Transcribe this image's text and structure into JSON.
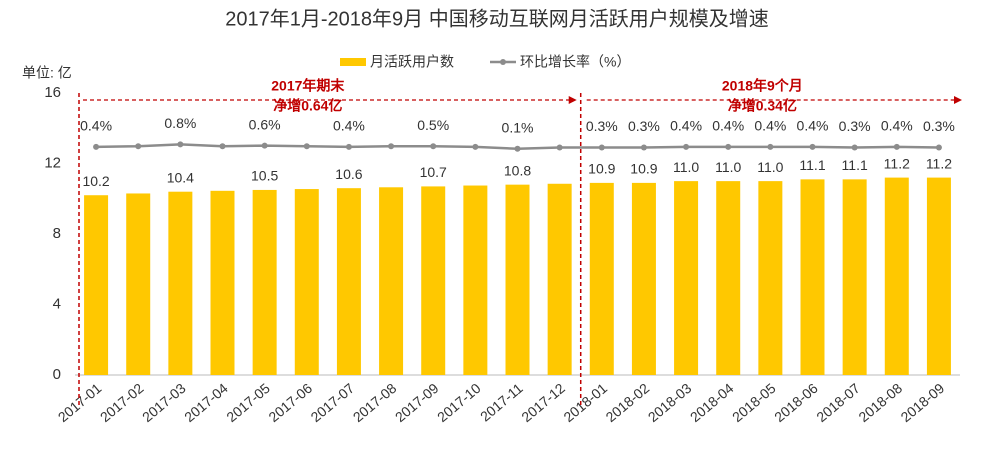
{
  "chart_data": {
    "type": "bar_line",
    "title": "2017年1月-2018年9月 中国移动互联网月活跃用户规模及增速",
    "unit_label": "单位: 亿",
    "categories": [
      "2017-01",
      "2017-02",
      "2017-03",
      "2017-04",
      "2017-05",
      "2017-06",
      "2017-07",
      "2017-08",
      "2017-09",
      "2017-10",
      "2017-11",
      "2017-12",
      "2018-01",
      "2018-02",
      "2018-03",
      "2018-04",
      "2018-05",
      "2018-06",
      "2018-07",
      "2018-08",
      "2018-09"
    ],
    "series": [
      {
        "name": "月活跃用户数",
        "color": "#ffc800",
        "type": "bar",
        "values": [
          10.2,
          10.3,
          10.4,
          10.45,
          10.5,
          10.55,
          10.6,
          10.65,
          10.7,
          10.75,
          10.8,
          10.85,
          10.9,
          10.9,
          11.0,
          11.0,
          11.0,
          11.1,
          11.1,
          11.2,
          11.2
        ],
        "value_labels": [
          "10.2",
          null,
          "10.4",
          null,
          "10.5",
          null,
          "10.6",
          null,
          "10.7",
          null,
          "10.8",
          null,
          "10.9",
          "10.9",
          "11.0",
          "11.0",
          "11.0",
          "11.1",
          "11.1",
          "11.2",
          "11.2"
        ]
      },
      {
        "name": "环比增长率（%）",
        "color": "#8c8c8c",
        "type": "line",
        "axis": "y2",
        "values": [
          0.4,
          0.5,
          0.8,
          0.5,
          0.6,
          0.5,
          0.4,
          0.5,
          0.5,
          0.4,
          0.1,
          0.3,
          0.3,
          0.3,
          0.4,
          0.4,
          0.4,
          0.4,
          0.3,
          0.4,
          0.3
        ],
        "value_labels": [
          "0.4%",
          null,
          "0.8%",
          null,
          "0.6%",
          null,
          "0.4%",
          null,
          "0.5%",
          null,
          "0.1%",
          null,
          "0.3%",
          "0.3%",
          "0.4%",
          "0.4%",
          "0.4%",
          "0.4%",
          "0.3%",
          "0.4%",
          "0.3%"
        ]
      }
    ],
    "ylim": [
      0,
      16
    ],
    "yticks": [
      0,
      4,
      8,
      12,
      16
    ],
    "y2lim": [
      -36,
      9
    ],
    "grid": false,
    "legend": "top",
    "annotations": [
      {
        "lines": [
          "2017年期末",
          "净增0.64亿"
        ],
        "color": "#c00000"
      },
      {
        "lines": [
          "2018年9个月",
          "净增0.34亿"
        ],
        "color": "#c00000"
      }
    ]
  }
}
